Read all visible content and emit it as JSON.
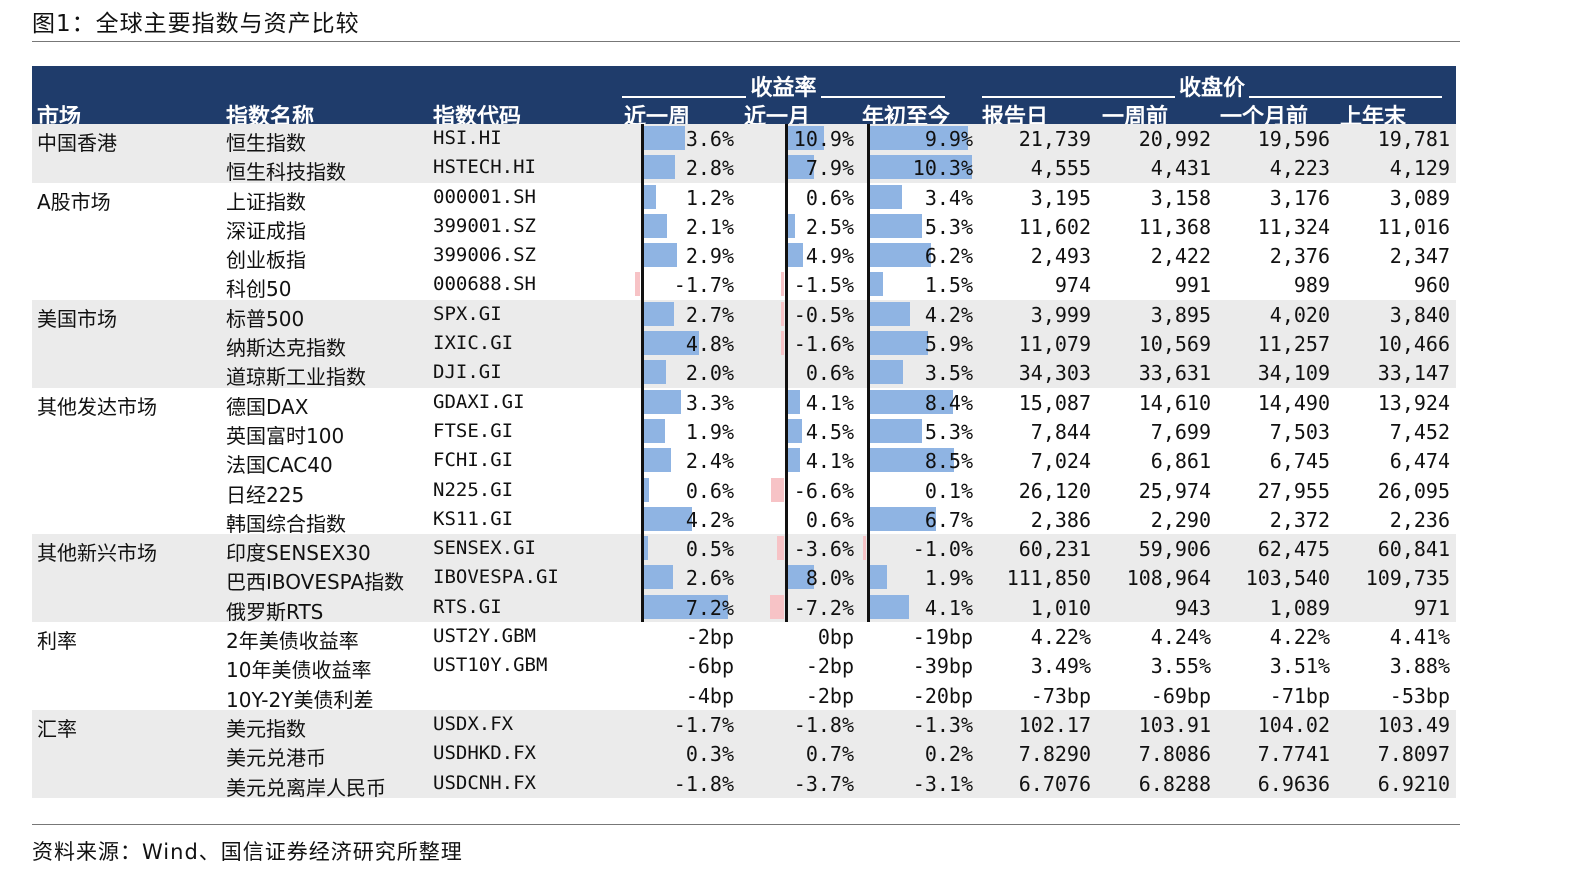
{
  "title": "图1：全球主要指数与资产比较",
  "source": "资料来源：Wind、国信证券经济研究所整理",
  "header": {
    "market": "市场",
    "name": "指数名称",
    "code": "指数代码",
    "return_group": "收益率",
    "close_group": "收盘价",
    "w1": "近一周",
    "m1": "近一月",
    "ytd": "年初至今",
    "report": "报告日",
    "prev_w": "一周前",
    "prev_m": "一个月前",
    "prev_y": "上年末"
  },
  "colors": {
    "header_bg": "#1f3c6b",
    "pos_bar": "#8fb4e3",
    "neg_bar": "#f7c3c6",
    "band": "#ebebeb"
  },
  "bar_scale": {
    "w1": 7.2,
    "m1": 10.9,
    "ytd": 10.3
  },
  "rows": [
    {
      "m": "中国香港",
      "n": "恒生指数",
      "c": "HSI.HI",
      "w": "3.6%",
      "mo": "10.9%",
      "y": "9.9%",
      "wv": 3.6,
      "mv": 10.9,
      "yv": 9.9,
      "r": "21,739",
      "pw": "20,992",
      "pm": "19,596",
      "py": "19,781",
      "shade": true
    },
    {
      "m": "",
      "n": "恒生科技指数",
      "c": "HSTECH.HI",
      "w": "2.8%",
      "mo": "7.9%",
      "y": "10.3%",
      "wv": 2.8,
      "mv": 7.9,
      "yv": 10.3,
      "r": "4,555",
      "pw": "4,431",
      "pm": "4,223",
      "py": "4,129",
      "shade": true
    },
    {
      "m": "A股市场",
      "n": "上证指数",
      "c": "000001.SH",
      "w": "1.2%",
      "mo": "0.6%",
      "y": "3.4%",
      "wv": 1.2,
      "mv": 0.6,
      "yv": 3.4,
      "r": "3,195",
      "pw": "3,158",
      "pm": "3,176",
      "py": "3,089",
      "shade": false
    },
    {
      "m": "",
      "n": "深证成指",
      "c": "399001.SZ",
      "w": "2.1%",
      "mo": "2.5%",
      "y": "5.3%",
      "wv": 2.1,
      "mv": 2.5,
      "yv": 5.3,
      "r": "11,602",
      "pw": "11,368",
      "pm": "11,324",
      "py": "11,016",
      "shade": false
    },
    {
      "m": "",
      "n": "创业板指",
      "c": "399006.SZ",
      "w": "2.9%",
      "mo": "4.9%",
      "y": "6.2%",
      "wv": 2.9,
      "mv": 4.9,
      "yv": 6.2,
      "r": "2,493",
      "pw": "2,422",
      "pm": "2,376",
      "py": "2,347",
      "shade": false
    },
    {
      "m": "",
      "n": "科创50",
      "c": "000688.SH",
      "w": "-1.7%",
      "mo": "-1.5%",
      "y": "1.5%",
      "wv": -1.7,
      "mv": -1.5,
      "yv": 1.5,
      "r": "974",
      "pw": "991",
      "pm": "989",
      "py": "960",
      "shade": false
    },
    {
      "m": "美国市场",
      "n": "标普500",
      "c": "SPX.GI",
      "w": "2.7%",
      "mo": "-0.5%",
      "y": "4.2%",
      "wv": 2.7,
      "mv": -0.5,
      "yv": 4.2,
      "r": "3,999",
      "pw": "3,895",
      "pm": "4,020",
      "py": "3,840",
      "shade": true
    },
    {
      "m": "",
      "n": "纳斯达克指数",
      "c": "IXIC.GI",
      "w": "4.8%",
      "mo": "-1.6%",
      "y": "5.9%",
      "wv": 4.8,
      "mv": -1.6,
      "yv": 5.9,
      "r": "11,079",
      "pw": "10,569",
      "pm": "11,257",
      "py": "10,466",
      "shade": true
    },
    {
      "m": "",
      "n": "道琼斯工业指数",
      "c": "DJI.GI",
      "w": "2.0%",
      "mo": "0.6%",
      "y": "3.5%",
      "wv": 2.0,
      "mv": 0.6,
      "yv": 3.5,
      "r": "34,303",
      "pw": "33,631",
      "pm": "34,109",
      "py": "33,147",
      "shade": true
    },
    {
      "m": "其他发达市场",
      "n": "德国DAX",
      "c": "GDAXI.GI",
      "w": "3.3%",
      "mo": "4.1%",
      "y": "8.4%",
      "wv": 3.3,
      "mv": 4.1,
      "yv": 8.4,
      "r": "15,087",
      "pw": "14,610",
      "pm": "14,490",
      "py": "13,924",
      "shade": false
    },
    {
      "m": "",
      "n": "英国富时100",
      "c": "FTSE.GI",
      "w": "1.9%",
      "mo": "4.5%",
      "y": "5.3%",
      "wv": 1.9,
      "mv": 4.5,
      "yv": 5.3,
      "r": "7,844",
      "pw": "7,699",
      "pm": "7,503",
      "py": "7,452",
      "shade": false
    },
    {
      "m": "",
      "n": "法国CAC40",
      "c": "FCHI.GI",
      "w": "2.4%",
      "mo": "4.1%",
      "y": "8.5%",
      "wv": 2.4,
      "mv": 4.1,
      "yv": 8.5,
      "r": "7,024",
      "pw": "6,861",
      "pm": "6,745",
      "py": "6,474",
      "shade": false
    },
    {
      "m": "",
      "n": "日经225",
      "c": "N225.GI",
      "w": "0.6%",
      "mo": "-6.6%",
      "y": "0.1%",
      "wv": 0.6,
      "mv": -6.6,
      "yv": 0.1,
      "r": "26,120",
      "pw": "25,974",
      "pm": "27,955",
      "py": "26,095",
      "shade": false
    },
    {
      "m": "",
      "n": "韩国综合指数",
      "c": "KS11.GI",
      "w": "4.2%",
      "mo": "0.6%",
      "y": "6.7%",
      "wv": 4.2,
      "mv": 0.6,
      "yv": 6.7,
      "r": "2,386",
      "pw": "2,290",
      "pm": "2,372",
      "py": "2,236",
      "shade": false
    },
    {
      "m": "其他新兴市场",
      "n": "印度SENSEX30",
      "c": "SENSEX.GI",
      "w": "0.5%",
      "mo": "-3.6%",
      "y": "-1.0%",
      "wv": 0.5,
      "mv": -3.6,
      "yv": -1.0,
      "r": "60,231",
      "pw": "59,906",
      "pm": "62,475",
      "py": "60,841",
      "shade": true
    },
    {
      "m": "",
      "n": "巴西IBOVESPA指数",
      "c": "IBOVESPA.GI",
      "w": "2.6%",
      "mo": "8.0%",
      "y": "1.9%",
      "wv": 2.6,
      "mv": 8.0,
      "yv": 1.9,
      "r": "111,850",
      "pw": "108,964",
      "pm": "103,540",
      "py": "109,735",
      "shade": true
    },
    {
      "m": "",
      "n": "俄罗斯RTS",
      "c": "RTS.GI",
      "w": "7.2%",
      "mo": "-7.2%",
      "y": "4.1%",
      "wv": 7.2,
      "mv": -7.2,
      "yv": 4.1,
      "r": "1,010",
      "pw": "943",
      "pm": "1,089",
      "py": "971",
      "shade": true
    },
    {
      "m": "利率",
      "n": "2年美债收益率",
      "c": "UST2Y.GBM",
      "w": "-2bp",
      "mo": "0bp",
      "y": "-19bp",
      "r": "4.22%",
      "pw": "4.24%",
      "pm": "4.22%",
      "py": "4.41%",
      "shade": false
    },
    {
      "m": "",
      "n": "10年美债收益率",
      "c": "UST10Y.GBM",
      "w": "-6bp",
      "mo": "-2bp",
      "y": "-39bp",
      "r": "3.49%",
      "pw": "3.55%",
      "pm": "3.51%",
      "py": "3.88%",
      "shade": false
    },
    {
      "m": "",
      "n": "10Y-2Y美债利差",
      "c": "",
      "w": "-4bp",
      "mo": "-2bp",
      "y": "-20bp",
      "r": "-73bp",
      "pw": "-69bp",
      "pm": "-71bp",
      "py": "-53bp",
      "shade": false
    },
    {
      "m": "汇率",
      "n": "美元指数",
      "c": "USDX.FX",
      "w": "-1.7%",
      "mo": "-1.8%",
      "y": "-1.3%",
      "r": "102.17",
      "pw": "103.91",
      "pm": "104.02",
      "py": "103.49",
      "shade": true
    },
    {
      "m": "",
      "n": "美元兑港币",
      "c": "USDHKD.FX",
      "w": "0.3%",
      "mo": "0.7%",
      "y": "0.2%",
      "r": "7.8290",
      "pw": "7.8086",
      "pm": "7.7741",
      "py": "7.8097",
      "shade": true
    },
    {
      "m": "",
      "n": "美元兑离岸人民币",
      "c": "USDCNH.FX",
      "w": "-1.8%",
      "mo": "-3.7%",
      "y": "-3.1%",
      "r": "6.7076",
      "pw": "6.8288",
      "pm": "6.9636",
      "py": "6.9210",
      "shade": true
    }
  ]
}
